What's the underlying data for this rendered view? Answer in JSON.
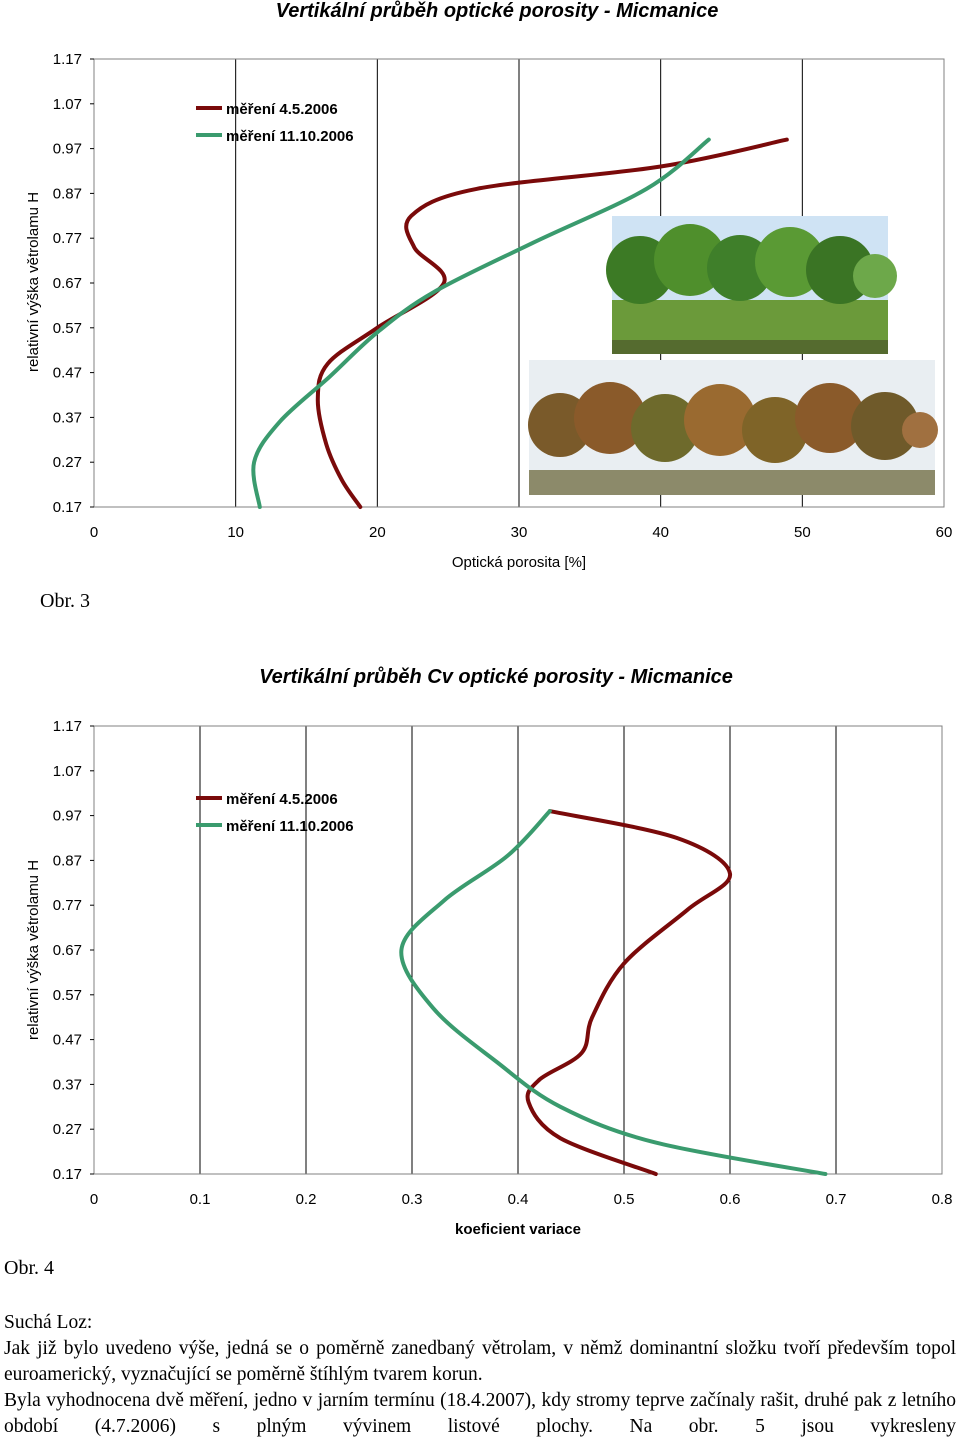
{
  "chart_data": [
    {
      "type": "line",
      "title": "Vertikální průběh optické porosity - Micmanice",
      "xlabel": "Optická porosita [%]",
      "ylabel": "relativní výška větrolamu H",
      "xlim": [
        0,
        60
      ],
      "ylim": [
        0.17,
        1.17
      ],
      "xticks": [
        "0",
        "10",
        "20",
        "30",
        "40",
        "50",
        "60"
      ],
      "yticks": [
        "0.17",
        "0.27",
        "0.37",
        "0.47",
        "0.57",
        "0.67",
        "0.77",
        "0.87",
        "0.97",
        "1.07",
        "1.17"
      ],
      "grid": "vertical",
      "legend": "top-left",
      "series": [
        {
          "name": "měření 4.5.2006",
          "color": "#7a0a0a",
          "points": [
            [
              18.8,
              0.17
            ],
            [
              17.5,
              0.23
            ],
            [
              16.4,
              0.31
            ],
            [
              15.8,
              0.41
            ],
            [
              16.5,
              0.49
            ],
            [
              20,
              0.57
            ],
            [
              24.7,
              0.67
            ],
            [
              22.6,
              0.75
            ],
            [
              22.4,
              0.82
            ],
            [
              27,
              0.88
            ],
            [
              40,
              0.93
            ],
            [
              48.9,
              0.99
            ]
          ]
        },
        {
          "name": "měření 11.10.2006",
          "color": "#3a9b6e",
          "points": [
            [
              11.7,
              0.17
            ],
            [
              11.3,
              0.27
            ],
            [
              13.1,
              0.36
            ],
            [
              16.6,
              0.46
            ],
            [
              20,
              0.56
            ],
            [
              24,
              0.65
            ],
            [
              31,
              0.76
            ],
            [
              39,
              0.88
            ],
            [
              43.4,
              0.99
            ]
          ]
        }
      ]
    },
    {
      "type": "line",
      "title": "Vertikální průběh Cv optické porosity - Micmanice",
      "xlabel": "koeficient variace",
      "ylabel": "relativní výška větrolamu H",
      "xlim": [
        0,
        0.8
      ],
      "ylim": [
        0.17,
        1.17
      ],
      "xticks": [
        "0",
        "0.1",
        "0.2",
        "0.3",
        "0.4",
        "0.5",
        "0.6",
        "0.7",
        "0.8"
      ],
      "yticks": [
        "0.17",
        "0.27",
        "0.37",
        "0.47",
        "0.57",
        "0.67",
        "0.77",
        "0.87",
        "0.97",
        "1.07",
        "1.17"
      ],
      "grid": "vertical",
      "legend": "top-left",
      "series": [
        {
          "name": "měření 4.5.2006",
          "color": "#7a0a0a",
          "points": [
            [
              0.53,
              0.17
            ],
            [
              0.44,
              0.25
            ],
            [
              0.41,
              0.33
            ],
            [
              0.42,
              0.38
            ],
            [
              0.46,
              0.44
            ],
            [
              0.47,
              0.52
            ],
            [
              0.5,
              0.64
            ],
            [
              0.56,
              0.76
            ],
            [
              0.6,
              0.84
            ],
            [
              0.55,
              0.92
            ],
            [
              0.43,
              0.98
            ]
          ]
        },
        {
          "name": "měření 11.10.2006",
          "color": "#3a9b6e",
          "points": [
            [
              0.69,
              0.17
            ],
            [
              0.53,
              0.24
            ],
            [
              0.44,
              0.32
            ],
            [
              0.38,
              0.42
            ],
            [
              0.32,
              0.54
            ],
            [
              0.29,
              0.67
            ],
            [
              0.33,
              0.78
            ],
            [
              0.39,
              0.88
            ],
            [
              0.43,
              0.98
            ]
          ]
        }
      ]
    }
  ],
  "captions": {
    "fig3": "Obr. 3",
    "fig4": "Obr. 4"
  },
  "body": {
    "heading": "Suchá Loz:",
    "para1": "Jak již bylo uvedeno výše, jedná se o poměrně zanedbaný větrolam, v němž  dominantní složku tvoří především topol euroamerický, vyznačující se poměrně štíhlým tvarem korun.",
    "para2": "Byla vyhodnocena dvě měření, jedno v jarním termínu (18.4.2007), kdy stromy teprve začínaly rašit, druhé pak z letního období (4.7.2006) s plným vývinem listové plochy.  Na obr. 5 jsou vykresleny"
  },
  "photos": {
    "summer_color": "#3f7f2a",
    "autumn_color": "#8a5a2a"
  }
}
